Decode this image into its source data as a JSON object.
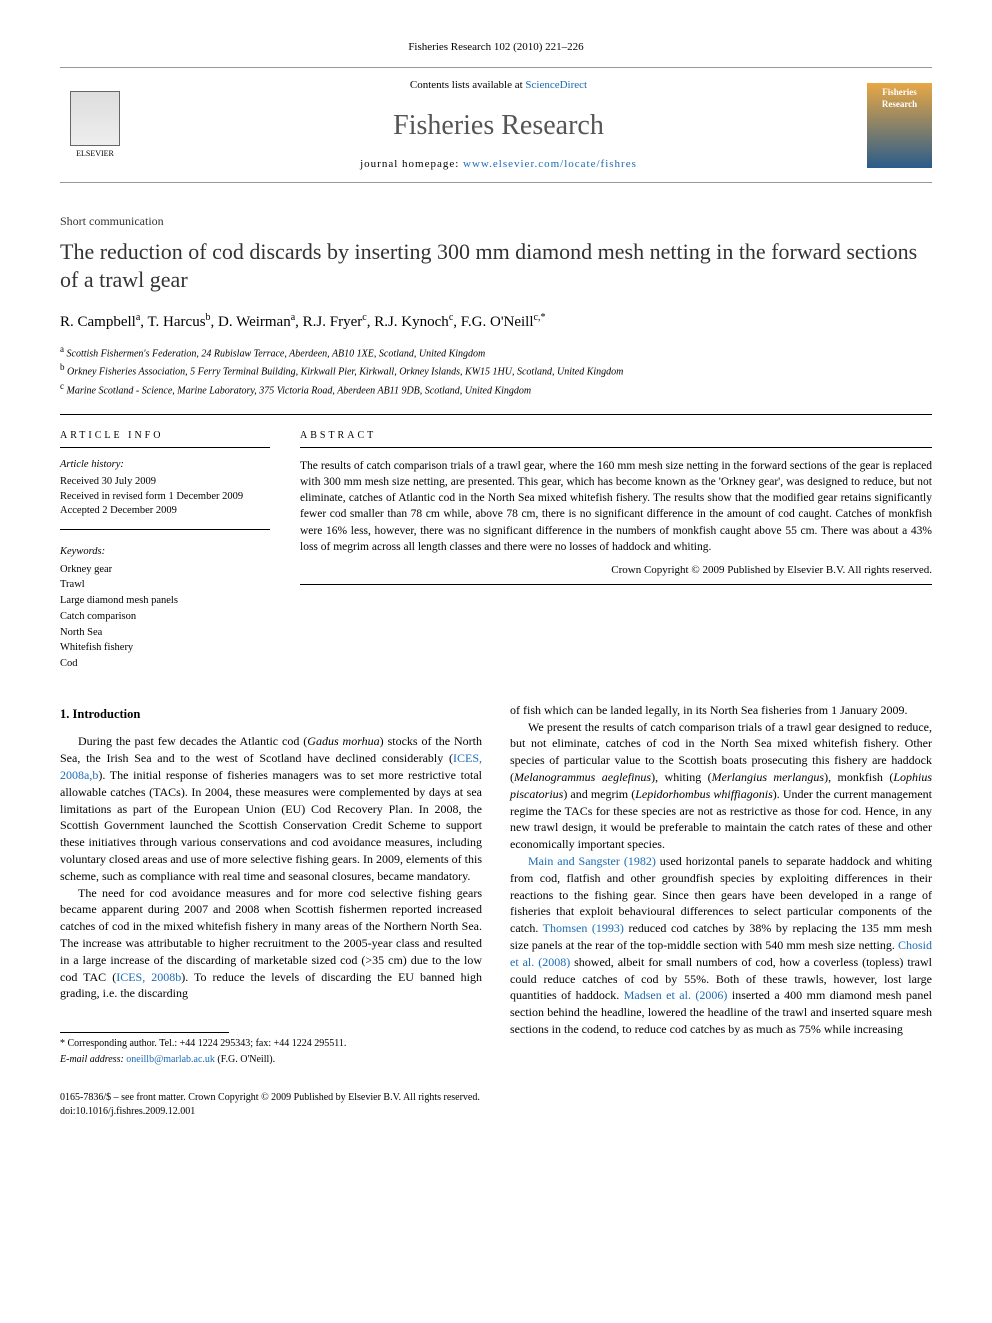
{
  "citation_header": "Fisheries Research 102 (2010) 221–226",
  "header": {
    "elsevier_label": "ELSEVIER",
    "contents_prefix": "Contents lists available at ",
    "contents_link": "ScienceDirect",
    "journal_name": "Fisheries Research",
    "homepage_prefix": "journal homepage: ",
    "homepage_url": "www.elsevier.com/locate/fishres",
    "cover_title": "Fisheries Research"
  },
  "article": {
    "type_label": "Short communication",
    "title": "The reduction of cod discards by inserting 300 mm diamond mesh netting in the forward sections of a trawl gear",
    "authors_html_parts": [
      {
        "name": "R. Campbell",
        "sup": "a"
      },
      {
        "name": "T. Harcus",
        "sup": "b"
      },
      {
        "name": "D. Weirman",
        "sup": "a"
      },
      {
        "name": "R.J. Fryer",
        "sup": "c"
      },
      {
        "name": "R.J. Kynoch",
        "sup": "c"
      },
      {
        "name": "F.G. O'Neill",
        "sup": "c,*"
      }
    ],
    "affiliations": [
      {
        "sup": "a",
        "text": "Scottish Fishermen's Federation, 24 Rubislaw Terrace, Aberdeen, AB10 1XE, Scotland, United Kingdom"
      },
      {
        "sup": "b",
        "text": "Orkney Fisheries Association, 5 Ferry Terminal Building, Kirkwall Pier, Kirkwall, Orkney Islands, KW15 1HU, Scotland, United Kingdom"
      },
      {
        "sup": "c",
        "text": "Marine Scotland - Science, Marine Laboratory, 375 Victoria Road, Aberdeen AB11 9DB, Scotland, United Kingdom"
      }
    ]
  },
  "info": {
    "heading": "ARTICLE INFO",
    "history_label": "Article history:",
    "history": [
      "Received 30 July 2009",
      "Received in revised form 1 December 2009",
      "Accepted 2 December 2009"
    ],
    "keywords_label": "Keywords:",
    "keywords": [
      "Orkney gear",
      "Trawl",
      "Large diamond mesh panels",
      "Catch comparison",
      "North Sea",
      "Whitefish fishery",
      "Cod"
    ]
  },
  "abstract": {
    "heading": "ABSTRACT",
    "text": "The results of catch comparison trials of a trawl gear, where the 160 mm mesh size netting in the forward sections of the gear is replaced with 300 mm mesh size netting, are presented. This gear, which has become known as the 'Orkney gear', was designed to reduce, but not eliminate, catches of Atlantic cod in the North Sea mixed whitefish fishery. The results show that the modified gear retains significantly fewer cod smaller than 78 cm while, above 78 cm, there is no significant difference in the amount of cod caught. Catches of monkfish were 16% less, however, there was no significant difference in the numbers of monkfish caught above 55 cm. There was about a 43% loss of megrim across all length classes and there were no losses of haddock and whiting.",
    "copyright": "Crown Copyright © 2009 Published by Elsevier B.V. All rights reserved."
  },
  "body": {
    "section_heading": "1. Introduction",
    "paragraphs": [
      "During the past few decades the Atlantic cod (Gadus morhua) stocks of the North Sea, the Irish Sea and to the west of Scotland have declined considerably (ICES, 2008a,b). The initial response of fisheries managers was to set more restrictive total allowable catches (TACs). In 2004, these measures were complemented by days at sea limitations as part of the European Union (EU) Cod Recovery Plan. In 2008, the Scottish Government launched the Scottish Conservation Credit Scheme to support these initiatives through various conservations and cod avoidance measures, including voluntary closed areas and use of more selective fishing gears. In 2009, elements of this scheme, such as compliance with real time and seasonal closures, became mandatory.",
      "The need for cod avoidance measures and for more cod selective fishing gears became apparent during 2007 and 2008 when Scottish fishermen reported increased catches of cod in the mixed whitefish fishery in many areas of the Northern North Sea. The increase was attributable to higher recruitment to the 2005-year class and resulted in a large increase of the discarding of marketable sized cod (>35 cm) due to the low cod TAC (ICES, 2008b). To reduce the levels of discarding the EU banned high grading, i.e. the discarding",
      "of fish which can be landed legally, in its North Sea fisheries from 1 January 2009.",
      "We present the results of catch comparison trials of a trawl gear designed to reduce, but not eliminate, catches of cod in the North Sea mixed whitefish fishery. Other species of particular value to the Scottish boats prosecuting this fishery are haddock (Melanogrammus aeglefinus), whiting (Merlangius merlangus), monkfish (Lophius piscatorius) and megrim (Lepidorhombus whiffiagonis). Under the current management regime the TACs for these species are not as restrictive as those for cod. Hence, in any new trawl design, it would be preferable to maintain the catch rates of these and other economically important species.",
      "Main and Sangster (1982) used horizontal panels to separate haddock and whiting from cod, flatfish and other groundfish species by exploiting differences in their reactions to the fishing gear. Since then gears have been developed in a range of fisheries that exploit behavioural differences to select particular components of the catch. Thomsen (1993) reduced cod catches by 38% by replacing the 135 mm mesh size panels at the rear of the top-middle section with 540 mm mesh size netting. Chosid et al. (2008) showed, albeit for small numbers of cod, how a coverless (topless) trawl could reduce catches of cod by 55%. Both of these trawls, however, lost large quantities of haddock. Madsen et al. (2006) inserted a 400 mm diamond mesh panel section behind the headline, lowered the headline of the trawl and inserted square mesh sections in the codend, to reduce cod catches by as much as 75% while increasing"
    ]
  },
  "footer": {
    "corr_label": "* Corresponding author. Tel.: +44 1224 295343; fax: +44 1224 295511.",
    "email_label": "E-mail address:",
    "email": "oneillb@marlab.ac.uk",
    "email_person": "(F.G. O'Neill).",
    "issn_line": "0165-7836/$ – see front matter. Crown Copyright © 2009 Published by Elsevier B.V. All rights reserved.",
    "doi": "doi:10.1016/j.fishres.2009.12.001"
  },
  "colors": {
    "link": "#1a6bb5",
    "text": "#000000",
    "title_gray": "#555555",
    "rule": "#000000"
  }
}
